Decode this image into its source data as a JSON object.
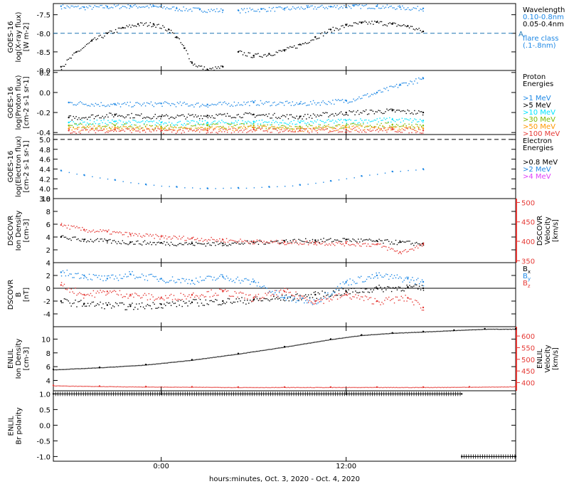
{
  "x_axis": {
    "title": "hours:minutes, Oct.  3, 2020 - Oct.  4, 2020",
    "range_hours": [
      -7.0,
      23.0
    ],
    "ticks": [
      {
        "x": 0,
        "label": "0:00"
      },
      {
        "x": 12,
        "label": "12:00"
      }
    ]
  },
  "chart_data": [
    {
      "type": "scatter",
      "panel": "goes_xray",
      "ylabel_lines": [
        "GOES-16",
        "log(X-ray flux)",
        "[W m-2]"
      ],
      "ylim": [
        -9.0,
        -7.2
      ],
      "yticks": [
        -9.0,
        -8.5,
        -8.0,
        -7.5
      ],
      "ytick_labels": [
        "-9.0",
        "-8.5",
        "-8.0",
        "-7.5"
      ],
      "threshold": {
        "y": -8.0,
        "label": "A",
        "color": "#1f77b4",
        "style": "dashed"
      },
      "legend": [
        {
          "text": "Wavelength",
          "color": "#000000"
        },
        {
          "text": "0.10-0.8nm",
          "color": "#1e88e5"
        },
        {
          "text": "0.05-0.4nm",
          "color": "#000000"
        },
        {
          "text": "",
          "color": "#000000"
        },
        {
          "text": "flare class",
          "color": "#1e88e5"
        },
        {
          "text": "(.1-.8nm)",
          "color": "#1e88e5"
        }
      ],
      "series": [
        {
          "name": "0.10-0.8nm",
          "color": "#1e88e5",
          "segments": [
            {
              "x": [
                -6.5,
                -5.0,
                -3.5,
                -2.0,
                -0.5,
                1.0,
                2.5,
                4.0
              ],
              "y": [
                -7.27,
                -7.3,
                -7.28,
                -7.26,
                -7.27,
                -7.33,
                -7.36,
                -7.38
              ]
            },
            {
              "x": [
                5.0,
                6.5,
                8.0,
                9.5,
                11.0,
                12.5,
                14.0,
                15.5,
                17.0
              ],
              "y": [
                -7.38,
                -7.35,
                -7.33,
                -7.3,
                -7.28,
                -7.26,
                -7.27,
                -7.3,
                -7.33
              ]
            }
          ]
        },
        {
          "name": "0.05-0.4nm",
          "color": "#000000",
          "segments": [
            {
              "x": [
                -6.5,
                -5.5,
                -4.5,
                -3.5,
                -2.5,
                -1.5,
                -0.5,
                0.5,
                1.0,
                1.5,
                2.0,
                3.0,
                4.0
              ],
              "y": [
                -8.9,
                -8.5,
                -8.2,
                -8.0,
                -7.85,
                -7.75,
                -7.75,
                -7.9,
                -8.1,
                -8.4,
                -8.8,
                -8.98,
                -8.9
              ]
            },
            {
              "x": [
                5.0,
                6.0,
                7.0,
                8.0,
                9.0,
                10.0,
                11.0,
                12.0,
                13.0,
                14.0,
                15.0,
                16.0,
                17.0
              ],
              "y": [
                -8.5,
                -8.6,
                -8.55,
                -8.45,
                -8.3,
                -8.1,
                -7.9,
                -7.78,
                -7.72,
                -7.7,
                -7.75,
                -7.8,
                -7.95
              ]
            }
          ]
        }
      ]
    },
    {
      "type": "scatter",
      "panel": "goes_proton",
      "ylabel_lines": [
        "GOES-16",
        "log(Proton flux)",
        "[cm-2 s-1 sr-1]"
      ],
      "ylim": [
        -0.42,
        0.22
      ],
      "yticks": [
        -0.4,
        -0.2,
        0.0,
        0.2
      ],
      "ytick_labels": [
        "-0.4",
        "-0.2",
        "0.0",
        "0.2"
      ],
      "legend": [
        {
          "text": "Proton",
          "color": "#000000"
        },
        {
          "text": "Energies",
          "color": "#000000"
        },
        {
          "text": "",
          "color": "#000000"
        },
        {
          "text": ">1 MeV",
          "color": "#1e88e5"
        },
        {
          "text": ">5 MeV",
          "color": "#000000"
        },
        {
          "text": ">10 MeV",
          "color": "#00e5ff"
        },
        {
          "text": ">30 MeV",
          "color": "#7cb800"
        },
        {
          "text": ">50 MeV",
          "color": "#ff9800"
        },
        {
          "text": ">100 MeV",
          "color": "#e53935"
        }
      ],
      "series": [
        {
          "name": ">1 MeV",
          "color": "#1e88e5",
          "x": [
            -6.0,
            -3.0,
            0.0,
            3.0,
            6.0,
            9.0,
            12.0,
            14.0,
            15.5,
            17.0
          ],
          "y": [
            -0.1,
            -0.12,
            -0.11,
            -0.12,
            -0.1,
            -0.11,
            -0.08,
            0.0,
            0.08,
            0.14
          ]
        },
        {
          "name": ">5 MeV",
          "color": "#000000",
          "x": [
            -6.0,
            -3.0,
            0.0,
            3.0,
            6.0,
            9.0,
            12.0,
            15.0,
            17.0
          ],
          "y": [
            -0.25,
            -0.22,
            -0.24,
            -0.23,
            -0.22,
            -0.24,
            -0.2,
            -0.18,
            -0.2
          ]
        },
        {
          "name": ">10 MeV",
          "color": "#00e5ff",
          "x": [
            -6.0,
            -3.0,
            0.0,
            3.0,
            6.0,
            9.0,
            12.0,
            15.0,
            17.0
          ],
          "y": [
            -0.3,
            -0.29,
            -0.3,
            -0.3,
            -0.29,
            -0.3,
            -0.28,
            -0.27,
            -0.28
          ]
        },
        {
          "name": ">30 MeV",
          "color": "#7cb800",
          "x": [
            -6.0,
            -3.0,
            0.0,
            3.0,
            6.0,
            9.0,
            12.0,
            15.0,
            17.0
          ],
          "y": [
            -0.33,
            -0.33,
            -0.34,
            -0.33,
            -0.33,
            -0.34,
            -0.33,
            -0.32,
            -0.33
          ]
        },
        {
          "name": ">50 MeV",
          "color": "#ff9800",
          "x": [
            -6.0,
            -3.0,
            0.0,
            3.0,
            6.0,
            9.0,
            12.0,
            15.0,
            17.0
          ],
          "y": [
            -0.36,
            -0.35,
            -0.36,
            -0.36,
            -0.35,
            -0.36,
            -0.35,
            -0.35,
            -0.36
          ]
        },
        {
          "name": ">100 MeV",
          "color": "#e53935",
          "x": [
            -6.0,
            -3.0,
            0.0,
            3.0,
            6.0,
            9.0,
            12.0,
            15.0,
            17.0
          ],
          "y": [
            -0.38,
            -0.37,
            -0.38,
            -0.38,
            -0.37,
            -0.38,
            -0.37,
            -0.37,
            -0.38
          ]
        }
      ]
    },
    {
      "type": "line",
      "panel": "goes_electron",
      "ylabel_lines": [
        "GOES-16",
        "log(Electron flux)",
        "[cm-2 s-1 sr-1]"
      ],
      "ylim": [
        3.8,
        5.1
      ],
      "yticks": [
        3.8,
        4.0,
        4.2,
        4.4,
        4.6,
        4.8,
        5.0
      ],
      "ytick_labels": [
        "3.8",
        "4.0",
        "4.2",
        "4.4",
        "4.6",
        "4.8",
        "5.0"
      ],
      "threshold": {
        "y": 5.0,
        "label": "",
        "color": "#000000",
        "style": "dashed"
      },
      "legend": [
        {
          "text": "Electron",
          "color": "#000000"
        },
        {
          "text": "Energies",
          "color": "#000000"
        },
        {
          "text": "",
          "color": "#000000"
        },
        {
          "text": ">0.8 MeV",
          "color": "#000000"
        },
        {
          "text": ">2 MeV",
          "color": "#1e88e5"
        },
        {
          "text": ">4 MeV",
          "color": "#e040fb"
        }
      ],
      "series": [
        {
          "name": ">2 MeV",
          "color": "#1e88e5",
          "x": [
            -6.5,
            -5.0,
            -3.0,
            -1.0,
            1.0,
            3.0,
            5.0,
            7.0,
            9.0,
            11.0,
            13.0,
            15.0,
            17.0
          ],
          "y": [
            4.37,
            4.28,
            4.18,
            4.09,
            4.04,
            4.01,
            4.02,
            4.04,
            4.08,
            4.16,
            4.26,
            4.35,
            4.4
          ]
        }
      ]
    },
    {
      "type": "scatter",
      "panel": "dscovr_plasma",
      "ylabel_lines": [
        "DSCOVR",
        "Ion Density",
        "[cm-3]"
      ],
      "ylabel_right_lines": [
        "DSCOVR",
        "Velocity",
        "[km/s]"
      ],
      "ylim": [
        0,
        10
      ],
      "yticks": [
        2,
        4,
        6,
        8,
        10
      ],
      "ytick_labels": [
        "2",
        "4",
        "6",
        "8",
        "10"
      ],
      "y2lim": [
        345,
        510
      ],
      "y2ticks": [
        350,
        400,
        450,
        500
      ],
      "y2tick_labels": [
        "350",
        "400",
        "450",
        "500"
      ],
      "right_axis_color": "#e53935",
      "series": [
        {
          "name": "Density",
          "color": "#000000",
          "axis": "left",
          "x": [
            -6.5,
            -5.0,
            -3.5,
            -2.0,
            0.0,
            2.0,
            4.0,
            6.0,
            8.0,
            10.0,
            12.0,
            14.0,
            15.5,
            17.0
          ],
          "y": [
            4.0,
            3.6,
            3.4,
            3.2,
            3.1,
            3.0,
            3.0,
            3.2,
            3.4,
            3.5,
            3.6,
            3.4,
            3.2,
            3.0
          ]
        },
        {
          "name": "Velocity",
          "color": "#e53935",
          "axis": "right",
          "x": [
            -6.5,
            -5.0,
            -3.5,
            -2.0,
            0.0,
            2.0,
            4.0,
            6.0,
            8.0,
            10.0,
            12.0,
            14.0,
            15.5,
            17.0
          ],
          "y": [
            442,
            430,
            425,
            418,
            412,
            408,
            404,
            400,
            398,
            397,
            395,
            392,
            372,
            392
          ]
        }
      ]
    },
    {
      "type": "scatter",
      "panel": "dscovr_mag",
      "ylabel_lines": [
        "DSCOVR",
        "B",
        "[nT]"
      ],
      "ylim": [
        -6,
        4
      ],
      "yticks": [
        -4,
        -2,
        0,
        2,
        4
      ],
      "ytick_labels": [
        "-4",
        "-2",
        "0",
        "2",
        "4"
      ],
      "zero_line": true,
      "legend": [
        {
          "text": "B",
          "sub": "x",
          "color": "#000000"
        },
        {
          "text": "B",
          "sub": "y",
          "color": "#1e88e5"
        },
        {
          "text": "B",
          "sub": "z",
          "color": "#e53935"
        }
      ],
      "series": [
        {
          "name": "Bx",
          "color": "#000000",
          "x": [
            -6.5,
            -5.0,
            -3.5,
            -2.0,
            0.0,
            2.0,
            4.0,
            6.0,
            8.0,
            10.0,
            12.0,
            14.0,
            16.0,
            17.0
          ],
          "y": [
            -2.0,
            -2.4,
            -2.6,
            -2.8,
            -2.5,
            -2.2,
            -2.0,
            -1.8,
            -1.5,
            -1.0,
            -0.5,
            0.0,
            0.2,
            0.0
          ]
        },
        {
          "name": "By",
          "color": "#1e88e5",
          "x": [
            -6.5,
            -5.0,
            -3.5,
            -2.0,
            0.0,
            2.0,
            4.0,
            6.0,
            8.0,
            10.0,
            12.0,
            14.0,
            16.0,
            17.0
          ],
          "y": [
            2.5,
            2.0,
            1.5,
            2.2,
            1.5,
            1.2,
            1.8,
            1.0,
            -1.5,
            -2.0,
            1.0,
            2.0,
            1.5,
            1.0
          ]
        },
        {
          "name": "Bz",
          "color": "#e53935",
          "x": [
            -6.5,
            -5.0,
            -3.5,
            -2.0,
            0.0,
            2.0,
            4.0,
            6.0,
            8.0,
            10.0,
            12.0,
            14.0,
            16.0,
            17.0
          ],
          "y": [
            0.5,
            -1.0,
            -0.5,
            -1.0,
            -1.5,
            -1.0,
            -0.5,
            -1.5,
            -0.5,
            -2.0,
            -1.0,
            -2.0,
            -1.5,
            -3.0
          ]
        }
      ]
    },
    {
      "type": "scatter",
      "panel": "enlil_plasma",
      "ylabel_lines": [
        "ENLIL",
        "Ion Density",
        "[cm-3]"
      ],
      "ylabel_right_lines": [
        "ENLIL",
        "Velocity",
        "[km/s]"
      ],
      "ylim": [
        2.5,
        11.8
      ],
      "yticks": [
        4,
        6,
        8,
        10
      ],
      "ytick_labels": [
        "4",
        "6",
        "8",
        "10"
      ],
      "y2lim": [
        365,
        640
      ],
      "y2ticks": [
        400,
        450,
        500,
        550,
        600
      ],
      "y2tick_labels": [
        "400",
        "450",
        "500",
        "550",
        "600"
      ],
      "right_axis_color": "#e53935",
      "series": [
        {
          "name": "Density",
          "color": "#000000",
          "axis": "left",
          "x": [
            -7.0,
            -4.0,
            -1.0,
            2.0,
            5.0,
            8.0,
            11.0,
            13.0,
            15.0,
            17.0,
            19.0,
            21.0,
            23.0
          ],
          "y": [
            5.6,
            5.9,
            6.3,
            7.0,
            7.9,
            8.9,
            10.0,
            10.6,
            10.9,
            11.1,
            11.3,
            11.5,
            11.5
          ]
        },
        {
          "name": "Velocity",
          "color": "#e53935",
          "axis": "right",
          "x": [
            -7.0,
            -4.0,
            -1.0,
            2.0,
            5.0,
            8.0,
            11.0,
            14.0,
            17.0,
            20.0,
            23.0
          ],
          "y": [
            388,
            385,
            383,
            382,
            381,
            381,
            381,
            381,
            381,
            382,
            384
          ]
        }
      ]
    },
    {
      "type": "scatter",
      "panel": "enlil_polarity",
      "ylabel_lines": [
        "ENLIL",
        "Br polarity"
      ],
      "ylim": [
        -1.15,
        1.1
      ],
      "yticks": [
        -1.0,
        -0.5,
        0.0,
        0.5,
        1.0
      ],
      "ytick_labels": [
        "-1.0",
        "-0.5",
        "0.0",
        "0.5",
        "1.0"
      ],
      "series": [
        {
          "name": "Br polarity",
          "color": "#000000",
          "segments": [
            {
              "x": [
                -7.0,
                19.5
              ],
              "y": [
                1.0,
                1.0
              ]
            },
            {
              "x": [
                19.5,
                23.0
              ],
              "y": [
                -1.0,
                -1.0
              ]
            }
          ]
        }
      ]
    }
  ]
}
